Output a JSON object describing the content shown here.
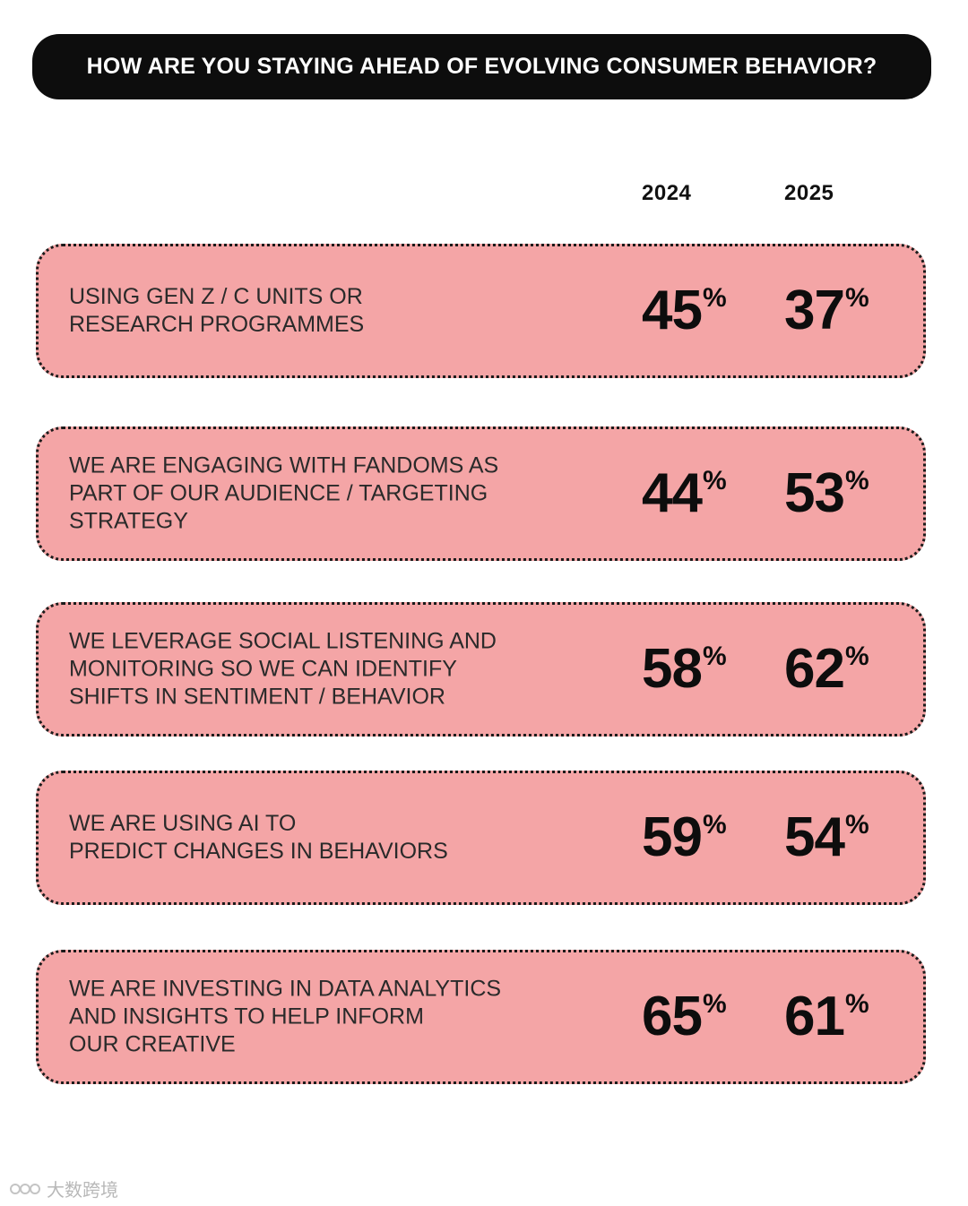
{
  "title": "HOW ARE YOU STAYING AHEAD OF EVOLVING CONSUMER BEHAVIOR?",
  "columns": [
    "2024",
    "2025"
  ],
  "watermark": "大数跨境",
  "colors": {
    "row_fill": "#f4a5a6",
    "title_bg": "#0d0d0d",
    "title_text": "#ffffff",
    "text": "#111111"
  },
  "chart_data": {
    "type": "table",
    "title": "HOW ARE YOU STAYING AHEAD OF EVOLVING CONSUMER BEHAVIOR?",
    "columns": [
      "2024",
      "2025"
    ],
    "unit": "%",
    "rows": [
      {
        "label": "USING GEN Z / C UNITS OR\nRESEARCH PROGRAMMES",
        "values": [
          45,
          37
        ]
      },
      {
        "label": "WE ARE ENGAGING WITH FANDOMS AS\nPART OF OUR AUDIENCE / TARGETING\nSTRATEGY",
        "values": [
          44,
          53
        ]
      },
      {
        "label": "WE LEVERAGE SOCIAL LISTENING AND\nMONITORING SO WE CAN IDENTIFY\nSHIFTS IN SENTIMENT / BEHAVIOR",
        "values": [
          58,
          62
        ]
      },
      {
        "label": "WE ARE USING AI TO\nPREDICT CHANGES IN BEHAVIORS",
        "values": [
          59,
          54
        ]
      },
      {
        "label": "WE ARE INVESTING IN DATA ANALYTICS\nAND INSIGHTS TO HELP INFORM\nOUR CREATIVE",
        "values": [
          65,
          61
        ]
      }
    ]
  }
}
